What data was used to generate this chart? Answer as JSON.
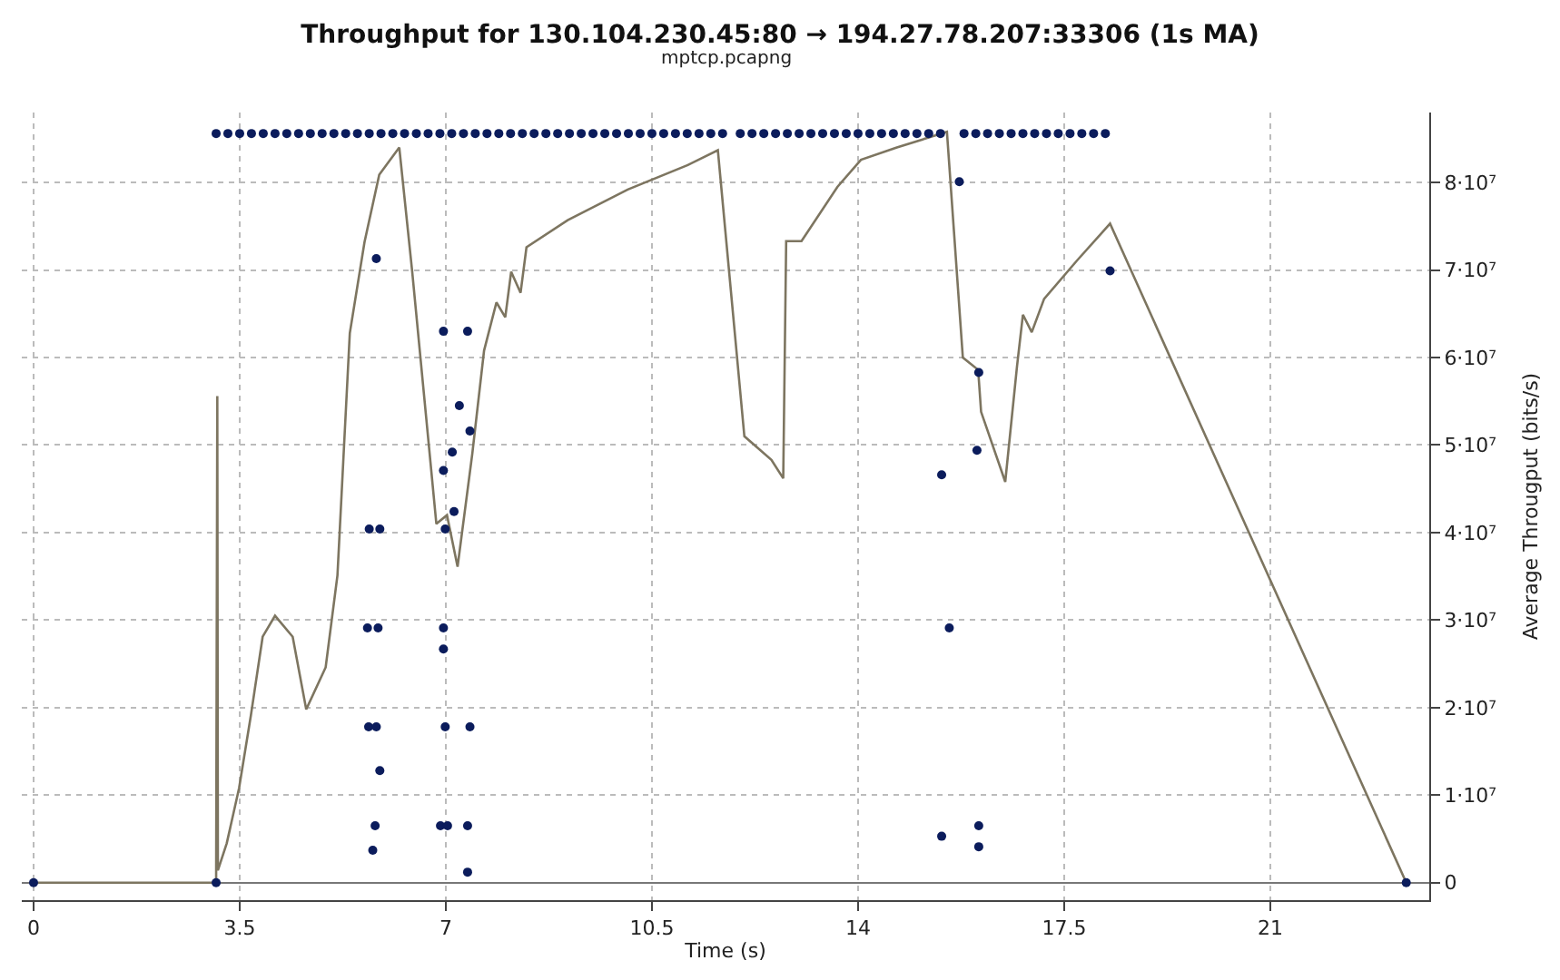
{
  "chart_data": {
    "type": "line",
    "title": "Throughput for 130.104.230.45:80 → 194.27.78.207:33306 (1s MA)",
    "subtitle": "mptcp.pcapng",
    "xlabel": "Time (s)",
    "ylabel": "Average Througput (bits/s)",
    "xlim": [
      -0.2,
      23.7
    ],
    "xticks": [
      0,
      3.5,
      7,
      10.5,
      14,
      17.5,
      21
    ],
    "ylim": [
      -2000000,
      88000000
    ],
    "yticks": [
      {
        "value": 0,
        "label": "0"
      },
      {
        "value": 10000000,
        "label": "1·10⁷"
      },
      {
        "value": 20000000,
        "label": "2·10⁷"
      },
      {
        "value": 30000000,
        "label": "3·10⁷"
      },
      {
        "value": 40000000,
        "label": "4·10⁷"
      },
      {
        "value": 50000000,
        "label": "5·10⁷"
      },
      {
        "value": 60000000,
        "label": "6·10⁷"
      },
      {
        "value": 70000000,
        "label": "7·10⁷"
      },
      {
        "value": 80000000,
        "label": "8·10⁷"
      }
    ],
    "grid": true,
    "series": [
      {
        "marker": "none",
        "line_style": "solid",
        "color": "#7d7560",
        "x": [
          0,
          3.1,
          3.12,
          3.13,
          3.28,
          3.49,
          3.69,
          3.89,
          4.1,
          4.4,
          4.63,
          4.96,
          5.16,
          5.37,
          5.62,
          5.87,
          6.21,
          6.43,
          6.84,
          7.02,
          7.2,
          7.45,
          7.65,
          7.86,
          8.01,
          8.11,
          8.27,
          8.37,
          9.07,
          10.09,
          11.11,
          11.62,
          12.07,
          12.53,
          12.73,
          12.78,
          13.04,
          13.65,
          14.05,
          14.66,
          15.51,
          15.78,
          16.04,
          16.09,
          16.5,
          16.7,
          16.8,
          16.95,
          17.16,
          17.72,
          18.28,
          23.31
        ],
        "values": [
          0,
          0,
          55600000,
          1400000,
          4500000,
          10800000,
          19100000,
          28100000,
          30500000,
          28100000,
          19800000,
          24600000,
          35100000,
          62800000,
          73200000,
          80900000,
          84000000,
          69800000,
          41000000,
          42000000,
          36100000,
          49000000,
          60800000,
          66300000,
          64600000,
          69800000,
          67400000,
          72600000,
          75700000,
          79200000,
          82000000,
          83700000,
          51000000,
          48300000,
          46200000,
          73300000,
          73300000,
          79500000,
          82600000,
          84000000,
          85800000,
          60000000,
          58600000,
          53800000,
          45800000,
          59000000,
          64900000,
          62900000,
          66700000,
          71100000,
          75300000,
          0
        ]
      },
      {
        "type": "scatter",
        "marker": "circle",
        "color": "#0b1c5c",
        "x": [
          5.82,
          6.96,
          7.37,
          7.23,
          7.41,
          7.11,
          6.96,
          7.14,
          5.7,
          5.88,
          6.99,
          5.67,
          5.85,
          6.96,
          6.96,
          5.69,
          5.82,
          6.99,
          7.41,
          5.88,
          5.8,
          6.91,
          7.03,
          7.37,
          5.76,
          7.37,
          0,
          3.1,
          15.72,
          18.28,
          16.05,
          16.02,
          15.42,
          15.55,
          15.42,
          16.05,
          16.05,
          23.31
        ],
        "values": [
          71300000,
          63000000,
          63000000,
          54500000,
          51600000,
          49200000,
          47100000,
          42400000,
          40400000,
          40400000,
          40400000,
          29100000,
          29100000,
          29100000,
          26700000,
          17800000,
          17800000,
          17800000,
          17800000,
          12800000,
          6500000,
          6500000,
          6500000,
          6500000,
          3700000,
          1200000,
          0,
          0,
          80100000,
          69900000,
          58300000,
          49400000,
          46600000,
          29100000,
          5300000,
          6500000,
          4100000,
          0
        ]
      },
      {
        "type": "scatter",
        "marker": "circle",
        "color": "#0b1c5c",
        "x": [
          3.1,
          3.3,
          3.5,
          3.7,
          3.9,
          4.1,
          4.3,
          4.5,
          4.7,
          4.9,
          5.1,
          5.3,
          5.5,
          5.7,
          5.9,
          6.1,
          6.3,
          6.5,
          6.7,
          6.9,
          7.1,
          7.3,
          7.5,
          7.7,
          7.9,
          8.1,
          8.3,
          8.5,
          8.7,
          8.9,
          9.1,
          9.3,
          9.5,
          9.7,
          9.9,
          10.1,
          10.3,
          10.5,
          10.7,
          10.9,
          11.1,
          11.3,
          11.5,
          11.7,
          12.0,
          12.2,
          12.4,
          12.6,
          12.8,
          13.0,
          13.2,
          13.4,
          13.6,
          13.8,
          14.0,
          14.2,
          14.4,
          14.6,
          14.8,
          15.0,
          15.2,
          15.4,
          15.8,
          16.0,
          16.2,
          16.4,
          16.6,
          16.8,
          17.0,
          17.2,
          17.4,
          17.6,
          17.8,
          18.0,
          18.2
        ],
        "values": [
          85600000,
          85600000,
          85600000,
          85600000,
          85600000,
          85600000,
          85600000,
          85600000,
          85600000,
          85600000,
          85600000,
          85600000,
          85600000,
          85600000,
          85600000,
          85600000,
          85600000,
          85600000,
          85600000,
          85600000,
          85600000,
          85600000,
          85600000,
          85600000,
          85600000,
          85600000,
          85600000,
          85600000,
          85600000,
          85600000,
          85600000,
          85600000,
          85600000,
          85600000,
          85600000,
          85600000,
          85600000,
          85600000,
          85600000,
          85600000,
          85600000,
          85600000,
          85600000,
          85600000,
          85600000,
          85600000,
          85600000,
          85600000,
          85600000,
          85600000,
          85600000,
          85600000,
          85600000,
          85600000,
          85600000,
          85600000,
          85600000,
          85600000,
          85600000,
          85600000,
          85600000,
          85600000,
          85600000,
          85600000,
          85600000,
          85600000,
          85600000,
          85600000,
          85600000,
          85600000,
          85600000,
          85600000,
          85600000,
          85600000,
          85600000
        ]
      }
    ]
  }
}
